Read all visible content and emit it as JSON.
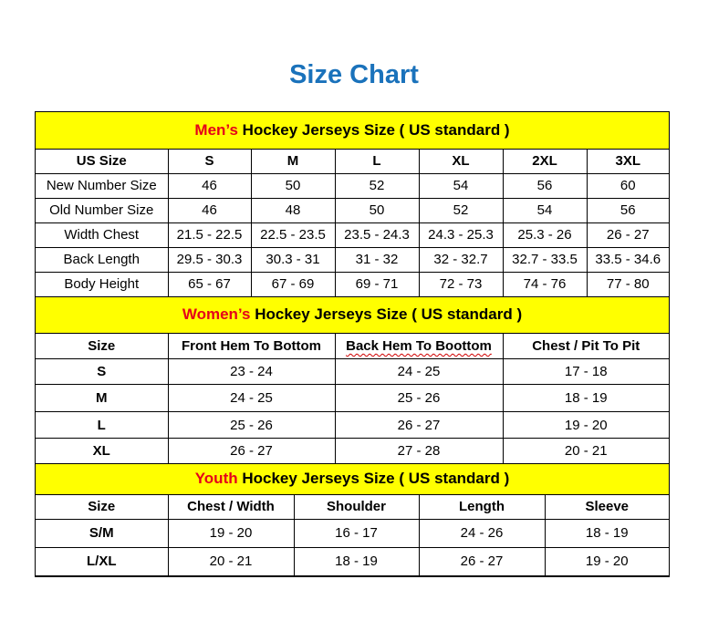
{
  "title": "Size Chart",
  "mens": {
    "title_highlight": "Men’s",
    "title_rest": " Hockey Jerseys Size ( US standard )",
    "headers": [
      "US Size",
      "S",
      "M",
      "L",
      "XL",
      "2XL",
      "3XL"
    ],
    "rows": [
      [
        "New Number Size",
        "46",
        "50",
        "52",
        "54",
        "56",
        "60"
      ],
      [
        "Old Number Size",
        "46",
        "48",
        "50",
        "52",
        "54",
        "56"
      ],
      [
        "Width Chest",
        "21.5 - 22.5",
        "22.5 - 23.5",
        "23.5 - 24.3",
        "24.3 - 25.3",
        "25.3 - 26",
        "26 - 27"
      ],
      [
        "Back Length",
        "29.5 - 30.3",
        "30.3 - 31",
        "31 - 32",
        "32 - 32.7",
        "32.7 - 33.5",
        "33.5 - 34.6"
      ],
      [
        "Body Height",
        "65 - 67",
        "67 - 69",
        "69 - 71",
        "72 - 73",
        "74 - 76",
        "77 - 80"
      ]
    ]
  },
  "womens": {
    "title_highlight": "Women’s",
    "title_rest": " Hockey Jerseys Size ( US standard )",
    "headers": [
      "Size",
      "Front Hem To Bottom",
      "Back Hem To Boottom",
      "Chest / Pit To Pit"
    ],
    "rows": [
      [
        "S",
        "23 - 24",
        "24 - 25",
        "17 - 18"
      ],
      [
        "M",
        "24 - 25",
        "25 - 26",
        "18 - 19"
      ],
      [
        "L",
        "25 - 26",
        "26 - 27",
        "19 - 20"
      ],
      [
        "XL",
        "26 - 27",
        "27 - 28",
        "20 - 21"
      ]
    ]
  },
  "youth": {
    "title_highlight": "Youth",
    "title_rest": " Hockey Jerseys Size ( US standard )",
    "headers": [
      "Size",
      "Chest / Width",
      "Shoulder",
      "Length",
      "Sleeve"
    ],
    "rows": [
      [
        "S/M",
        "19 - 20",
        "16 - 17",
        "24 - 26",
        "18 - 19"
      ],
      [
        "L/XL",
        "20 - 21",
        "18 - 19",
        "26 - 27",
        "19 - 20"
      ]
    ]
  },
  "colors": {
    "title": "#1a72bb",
    "section_bg": "#ffff00",
    "highlight": "#e5001a"
  }
}
